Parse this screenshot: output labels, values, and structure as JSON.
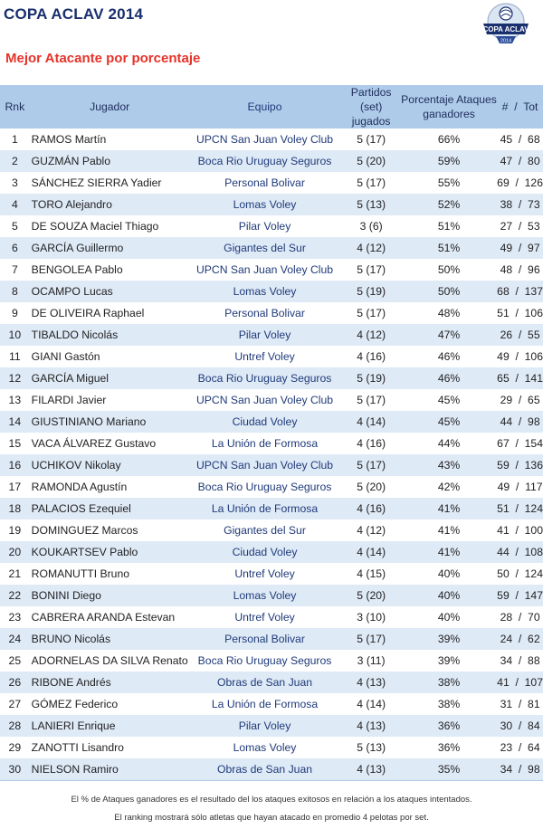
{
  "header": {
    "title": "COPA ACLAV 2014",
    "subtitle": "Mejor Atacante por porcentaje",
    "logo_text_top": "COPA ACLAV",
    "logo_text_bottom": "2014"
  },
  "table": {
    "columns": {
      "rnk": "Rnk",
      "jugador": "Jugador",
      "equipo": "Equipo",
      "partidos_1": "Partidos",
      "partidos_2": "(set) jugados",
      "porcentaje_1": "Porcentaje Ataques",
      "porcentaje_2": "ganadores",
      "tot": "#  /  Tot"
    },
    "rows": [
      {
        "rnk": "1",
        "jugador": "RAMOS Martín",
        "equipo": "UPCN San Juan Voley Club",
        "partidos": "5 (17)",
        "pct": "66%",
        "tot": "45  /  68"
      },
      {
        "rnk": "2",
        "jugador": "GUZMÁN Pablo",
        "equipo": "Boca Rio Uruguay Seguros",
        "partidos": "5 (20)",
        "pct": "59%",
        "tot": "47  /  80"
      },
      {
        "rnk": "3",
        "jugador": "SÁNCHEZ SIERRA Yadier",
        "equipo": "Personal Bolivar",
        "partidos": "5 (17)",
        "pct": "55%",
        "tot": "69  /  126"
      },
      {
        "rnk": "4",
        "jugador": "TORO Alejandro",
        "equipo": "Lomas Voley",
        "partidos": "5 (13)",
        "pct": "52%",
        "tot": "38  /  73"
      },
      {
        "rnk": "5",
        "jugador": "DE SOUZA Maciel Thiago",
        "equipo": "Pilar Voley",
        "partidos": "3 (6)",
        "pct": "51%",
        "tot": "27  /  53"
      },
      {
        "rnk": "6",
        "jugador": "GARCÍA Guillermo",
        "equipo": "Gigantes del Sur",
        "partidos": "4 (12)",
        "pct": "51%",
        "tot": "49  /  97"
      },
      {
        "rnk": "7",
        "jugador": "BENGOLEA Pablo",
        "equipo": "UPCN San Juan Voley Club",
        "partidos": "5 (17)",
        "pct": "50%",
        "tot": "48  /  96"
      },
      {
        "rnk": "8",
        "jugador": "OCAMPO Lucas",
        "equipo": "Lomas Voley",
        "partidos": "5 (19)",
        "pct": "50%",
        "tot": "68  /  137"
      },
      {
        "rnk": "9",
        "jugador": "DE OLIVEIRA Raphael",
        "equipo": "Personal Bolivar",
        "partidos": "5 (17)",
        "pct": "48%",
        "tot": "51  /  106"
      },
      {
        "rnk": "10",
        "jugador": "TIBALDO Nicolás",
        "equipo": "Pilar Voley",
        "partidos": "4 (12)",
        "pct": "47%",
        "tot": "26  /  55"
      },
      {
        "rnk": "11",
        "jugador": "GIANI Gastón",
        "equipo": "Untref Voley",
        "partidos": "4 (16)",
        "pct": "46%",
        "tot": "49  /  106"
      },
      {
        "rnk": "12",
        "jugador": "GARCÍA Miguel",
        "equipo": "Boca Rio Uruguay Seguros",
        "partidos": "5 (19)",
        "pct": "46%",
        "tot": "65  /  141"
      },
      {
        "rnk": "13",
        "jugador": "FILARDI Javier",
        "equipo": "UPCN San Juan Voley Club",
        "partidos": "5 (17)",
        "pct": "45%",
        "tot": "29  /  65"
      },
      {
        "rnk": "14",
        "jugador": "GIUSTINIANO Mariano",
        "equipo": "Ciudad Voley",
        "partidos": "4 (14)",
        "pct": "45%",
        "tot": "44  /  98"
      },
      {
        "rnk": "15",
        "jugador": "VACA ÁLVAREZ Gustavo",
        "equipo": "La Unión de Formosa",
        "partidos": "4 (16)",
        "pct": "44%",
        "tot": "67  /  154"
      },
      {
        "rnk": "16",
        "jugador": "UCHIKOV Nikolay",
        "equipo": "UPCN San Juan Voley Club",
        "partidos": "5 (17)",
        "pct": "43%",
        "tot": "59  /  136"
      },
      {
        "rnk": "17",
        "jugador": "RAMONDA Agustín",
        "equipo": "Boca Rio Uruguay Seguros",
        "partidos": "5 (20)",
        "pct": "42%",
        "tot": "49  /  117"
      },
      {
        "rnk": "18",
        "jugador": "PALACIOS Ezequiel",
        "equipo": "La Unión de Formosa",
        "partidos": "4 (16)",
        "pct": "41%",
        "tot": "51  /  124"
      },
      {
        "rnk": "19",
        "jugador": "DOMINGUEZ Marcos",
        "equipo": "Gigantes del Sur",
        "partidos": "4 (12)",
        "pct": "41%",
        "tot": "41  /  100"
      },
      {
        "rnk": "20",
        "jugador": "KOUKARTSEV Pablo",
        "equipo": "Ciudad Voley",
        "partidos": "4 (14)",
        "pct": "41%",
        "tot": "44  /  108"
      },
      {
        "rnk": "21",
        "jugador": "ROMANUTTI Bruno",
        "equipo": "Untref Voley",
        "partidos": "4 (15)",
        "pct": "40%",
        "tot": "50  /  124"
      },
      {
        "rnk": "22",
        "jugador": "BONINI Diego",
        "equipo": "Lomas Voley",
        "partidos": "5 (20)",
        "pct": "40%",
        "tot": "59  /  147"
      },
      {
        "rnk": "23",
        "jugador": "CABRERA ARANDA Estevan",
        "equipo": "Untref Voley",
        "partidos": "3 (10)",
        "pct": "40%",
        "tot": "28  /  70"
      },
      {
        "rnk": "24",
        "jugador": "BRUNO Nicolás",
        "equipo": "Personal Bolivar",
        "partidos": "5 (17)",
        "pct": "39%",
        "tot": "24  /  62"
      },
      {
        "rnk": "25",
        "jugador": "ADORNELAS DA SILVA Renato",
        "equipo": "Boca Rio Uruguay Seguros",
        "partidos": "3 (11)",
        "pct": "39%",
        "tot": "34  /  88"
      },
      {
        "rnk": "26",
        "jugador": "RIBONE Andrés",
        "equipo": "Obras de San Juan",
        "partidos": "4 (13)",
        "pct": "38%",
        "tot": "41  /  107"
      },
      {
        "rnk": "27",
        "jugador": "GÓMEZ Federico",
        "equipo": "La Unión de Formosa",
        "partidos": "4 (14)",
        "pct": "38%",
        "tot": "31  /  81"
      },
      {
        "rnk": "28",
        "jugador": "LANIERI Enrique",
        "equipo": "Pilar Voley",
        "partidos": "4 (13)",
        "pct": "36%",
        "tot": "30  /  84"
      },
      {
        "rnk": "29",
        "jugador": "ZANOTTI Lisandro",
        "equipo": "Lomas Voley",
        "partidos": "5 (13)",
        "pct": "36%",
        "tot": "23  /  64"
      },
      {
        "rnk": "30",
        "jugador": "NIELSON Ramiro",
        "equipo": "Obras de San Juan",
        "partidos": "4 (13)",
        "pct": "35%",
        "tot": "34  /  98"
      }
    ]
  },
  "footer": {
    "line1": "El % de Ataques ganadores es el resultado del los ataques exitosos en relación a los ataques intentados.",
    "line2": "El ranking mostrará sólo atletas que hayan atacado en promedio 4 pelotas por set."
  },
  "colors": {
    "title": "#1a2f6e",
    "subtitle": "#e6332a",
    "header_bg": "#aecbea",
    "row_alt_bg": "#dfeaf7",
    "team_text": "#1f3a78"
  }
}
